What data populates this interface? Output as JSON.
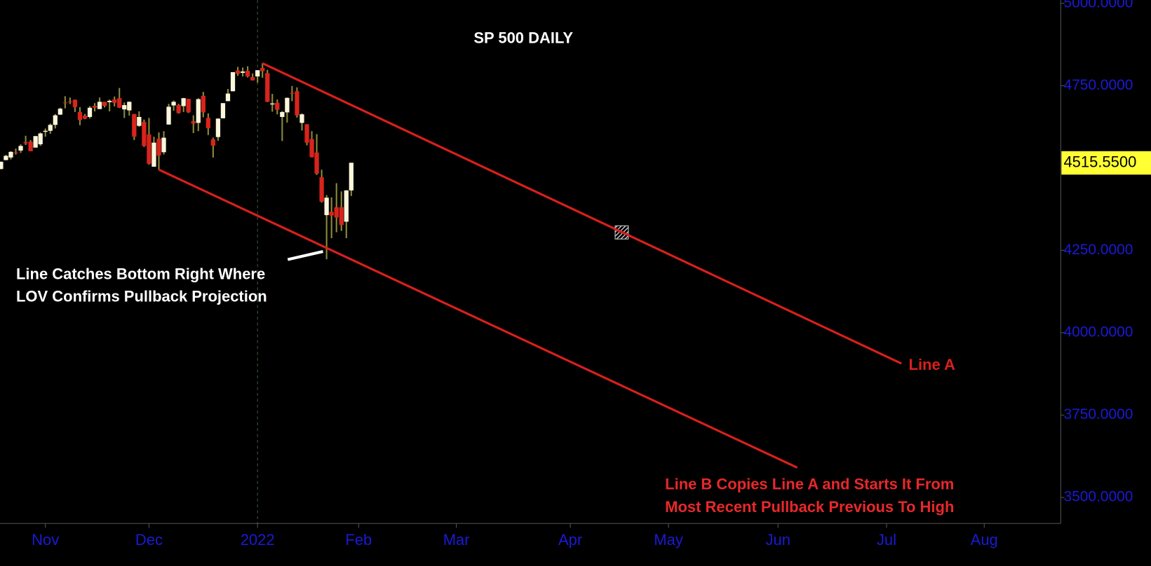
{
  "chart_data": {
    "type": "candlestick",
    "title": "SP 500 DAILY",
    "x": [
      -9,
      -8,
      -7,
      -6,
      -5,
      -4,
      -3,
      -2,
      -1,
      0,
      1,
      2,
      3,
      4,
      5,
      6,
      7,
      8,
      9,
      10,
      11,
      12,
      13,
      14,
      15,
      16,
      17,
      18,
      19,
      20,
      21,
      22,
      23,
      24,
      25,
      26,
      27,
      28,
      29,
      30,
      31,
      32,
      33,
      34,
      35,
      36,
      37,
      38,
      39,
      40,
      41,
      42,
      43,
      44,
      45,
      46,
      47,
      48,
      49,
      50,
      51,
      52,
      53,
      54,
      55,
      56,
      57,
      58,
      59,
      60,
      61,
      62
    ],
    "open": [
      4497,
      4524,
      4532,
      4547,
      4553,
      4579,
      4580,
      4562,
      4572,
      4610,
      4613,
      4631,
      4662,
      4699,
      4702,
      4707,
      4670,
      4659,
      4655,
      4689,
      4679,
      4701,
      4700,
      4708,
      4712,
      4678,
      4675,
      4664,
      4628,
      4640,
      4602,
      4504,
      4589,
      4548,
      4632,
      4690,
      4691,
      4688,
      4710,
      4642,
      4637,
      4719,
      4652,
      4587,
      4594,
      4651,
      4703,
      4733,
      4796,
      4789,
      4795,
      4776,
      4778,
      4804,
      4788,
      4693,
      4698,
      4655,
      4669,
      4728,
      4733,
      4637,
      4633,
      4588,
      4547,
      4472,
      4357,
      4367,
      4381,
      4381,
      4337,
      4432
    ],
    "high": [
      4520,
      4540,
      4551,
      4559,
      4572,
      4598,
      4585,
      4597,
      4608,
      4620,
      4635,
      4664,
      4683,
      4718,
      4714,
      4708,
      4685,
      4664,
      4688,
      4697,
      4714,
      4701,
      4708,
      4717,
      4743,
      4699,
      4702,
      4664,
      4672,
      4647,
      4652,
      4595,
      4608,
      4612,
      4695,
      4705,
      4695,
      4713,
      4710,
      4660,
      4712,
      4731,
      4666,
      4592,
      4651,
      4697,
      4740,
      4791,
      4807,
      4805,
      4809,
      4787,
      4797,
      4818,
      4798,
      4725,
      4708,
      4673,
      4714,
      4749,
      4745,
      4666,
      4633,
      4612,
      4603,
      4495,
      4418,
      4411,
      4454,
      4429,
      4433,
      4516
    ],
    "low": [
      4496,
      4524,
      4526,
      4541,
      4546,
      4570,
      4551,
      4562,
      4567,
      4595,
      4604,
      4620,
      4661,
      4681,
      4694,
      4670,
      4630,
      4648,
      4650,
      4672,
      4679,
      4684,
      4672,
      4687,
      4682,
      4652,
      4659,
      4585,
      4625,
      4564,
      4510,
      4504,
      4495,
      4541,
      4632,
      4674,
      4665,
      4670,
      4667,
      4606,
      4612,
      4654,
      4600,
      4532,
      4583,
      4651,
      4703,
      4733,
      4780,
      4778,
      4775,
      4766,
      4759,
      4774,
      4700,
      4671,
      4663,
      4582,
      4638,
      4703,
      4653,
      4614,
      4569,
      4532,
      4479,
      4395,
      4223,
      4287,
      4305,
      4309,
      4287,
      4415
    ],
    "close": [
      4519,
      4537,
      4549,
      4545,
      4567,
      4575,
      4551,
      4597,
      4605,
      4613,
      4631,
      4660,
      4680,
      4697,
      4701,
      4685,
      4646,
      4650,
      4683,
      4683,
      4701,
      4689,
      4704,
      4698,
      4683,
      4691,
      4701,
      4595,
      4655,
      4567,
      4513,
      4577,
      4538,
      4592,
      4686,
      4701,
      4667,
      4712,
      4669,
      4635,
      4709,
      4669,
      4621,
      4568,
      4650,
      4697,
      4726,
      4791,
      4786,
      4793,
      4778,
      4766,
      4797,
      4794,
      4701,
      4696,
      4677,
      4670,
      4713,
      4726,
      4660,
      4663,
      4577,
      4533,
      4483,
      4398,
      4410,
      4356,
      4350,
      4327,
      4432,
      4516
    ],
    "up_color": "#fbf6dc",
    "down_color": "#d8241c",
    "wick_color": "#8c8a3a",
    "xlim": [
      -9.2,
      205.8
    ],
    "xticks": [
      {
        "value": 0,
        "label": "Nov"
      },
      {
        "value": 21,
        "label": "Dec"
      },
      {
        "value": 43,
        "label": "2022"
      },
      {
        "value": 63.5,
        "label": "Feb"
      },
      {
        "value": 83.3,
        "label": "Mar"
      },
      {
        "value": 106.4,
        "label": "Apr"
      },
      {
        "value": 126.3,
        "label": "May"
      },
      {
        "value": 148.5,
        "label": "Jun"
      },
      {
        "value": 170.5,
        "label": "Jul"
      },
      {
        "value": 190.3,
        "label": "Aug"
      }
    ],
    "ylim": [
      3421,
      5010
    ],
    "yticks": [
      {
        "value": 3500,
        "label": "3500.0000"
      },
      {
        "value": 3750,
        "label": "3750.0000"
      },
      {
        "value": 4000,
        "label": "4000.0000"
      },
      {
        "value": 4250,
        "label": "4250.0000"
      },
      {
        "value": 4500,
        "label": "4500.0000"
      },
      {
        "value": 4750,
        "label": "4750.0000"
      },
      {
        "value": 5000,
        "label": "5000.0000"
      }
    ],
    "last_price": {
      "value": 4515.55,
      "label": "4515.5500"
    },
    "lines": [
      {
        "name": "Line A",
        "color": "#d8201c",
        "x": [
          44,
          173.5
        ],
        "y": [
          4818,
          3906.6
        ]
      },
      {
        "name": "Line B",
        "color": "#d8201c",
        "x": [
          23,
          152.4
        ],
        "y": [
          4495,
          3590.5
        ]
      }
    ],
    "annotations": [
      {
        "lines": [
          "Line Catches Bottom Right Where",
          "LOV Confirms Pullback Projection"
        ],
        "color": "#ffffff"
      },
      {
        "lines": [
          "Line B Copies Line A and Starts It From",
          "Most Recent Pullback Previous To High"
        ],
        "color": "#e8282a"
      }
    ]
  }
}
